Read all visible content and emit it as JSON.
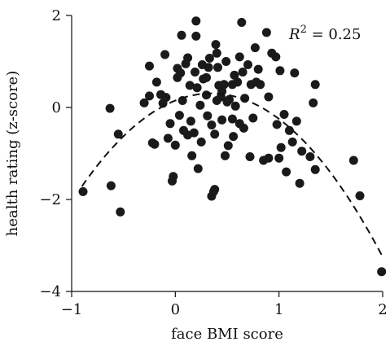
{
  "chart_data": {
    "type": "scatter",
    "xlabel": "face BMI score",
    "ylabel": "health rating (z-score)",
    "xlim": [
      -1,
      2
    ],
    "ylim": [
      -4,
      2
    ],
    "xticks": [
      -1,
      0,
      1,
      2
    ],
    "xtick_labels": [
      "−1",
      "0",
      "1",
      "2"
    ],
    "yticks": [
      -4,
      -2,
      0,
      2
    ],
    "ytick_labels": [
      "−4",
      "−2",
      "0",
      "2"
    ],
    "grid": false,
    "annotation": {
      "label": "R",
      "exponent": "2",
      "equals": " = ",
      "value": "0.25"
    },
    "fit": {
      "type": "quadratic",
      "coefficients": [
        0.15,
        0.9,
        -1.3
      ],
      "x_range": [
        -0.9,
        2.0
      ]
    },
    "points": [
      [
        -0.89,
        -1.83
      ],
      [
        -0.63,
        -0.02
      ],
      [
        -0.62,
        -1.7
      ],
      [
        -0.55,
        -0.58
      ],
      [
        -0.53,
        -2.27
      ],
      [
        -0.3,
        0.1
      ],
      [
        -0.25,
        0.9
      ],
      [
        -0.25,
        0.25
      ],
      [
        -0.22,
        -0.77
      ],
      [
        -0.2,
        -0.8
      ],
      [
        -0.18,
        0.55
      ],
      [
        -0.14,
        0.28
      ],
      [
        -0.12,
        0.09
      ],
      [
        -0.1,
        1.15
      ],
      [
        -0.09,
        0.22
      ],
      [
        -0.07,
        -0.67
      ],
      [
        -0.05,
        -0.35
      ],
      [
        -0.03,
        -1.6
      ],
      [
        -0.02,
        -1.5
      ],
      [
        0.0,
        -0.82
      ],
      [
        0.02,
        0.85
      ],
      [
        0.02,
        0.65
      ],
      [
        0.04,
        -0.17
      ],
      [
        0.05,
        0.75
      ],
      [
        0.06,
        1.57
      ],
      [
        0.07,
        0.15
      ],
      [
        0.08,
        -0.5
      ],
      [
        0.1,
        0.95
      ],
      [
        0.12,
        -0.6
      ],
      [
        0.12,
        1.08
      ],
      [
        0.14,
        0.48
      ],
      [
        0.15,
        -0.3
      ],
      [
        0.16,
        -1.05
      ],
      [
        0.18,
        -0.55
      ],
      [
        0.19,
        0.77
      ],
      [
        0.2,
        1.88
      ],
      [
        0.2,
        1.55
      ],
      [
        0.21,
        0.43
      ],
      [
        0.22,
        -1.33
      ],
      [
        0.24,
        0.05
      ],
      [
        0.25,
        -0.75
      ],
      [
        0.26,
        0.93
      ],
      [
        0.27,
        0.62
      ],
      [
        0.3,
        0.27
      ],
      [
        0.3,
        0.65
      ],
      [
        0.31,
        -0.18
      ],
      [
        0.32,
        0.87
      ],
      [
        0.33,
        1.07
      ],
      [
        0.35,
        -0.38
      ],
      [
        0.35,
        -1.93
      ],
      [
        0.37,
        -1.83
      ],
      [
        0.38,
        -1.78
      ],
      [
        0.38,
        -0.58
      ],
      [
        0.39,
        1.37
      ],
      [
        0.4,
        1.18
      ],
      [
        0.4,
        0.15
      ],
      [
        0.41,
        0.87
      ],
      [
        0.42,
        0.48
      ],
      [
        0.44,
        0.23
      ],
      [
        0.45,
        -0.27
      ],
      [
        0.45,
        0.35
      ],
      [
        0.47,
        0.5
      ],
      [
        0.48,
        -1.05
      ],
      [
        0.49,
        1.0
      ],
      [
        0.5,
        0.12
      ],
      [
        0.51,
        -0.83
      ],
      [
        0.52,
        0.17
      ],
      [
        0.55,
        0.5
      ],
      [
        0.55,
        -0.25
      ],
      [
        0.56,
        -0.63
      ],
      [
        0.57,
        0.7
      ],
      [
        0.58,
        0.03
      ],
      [
        0.6,
        0.55
      ],
      [
        0.62,
        1.1
      ],
      [
        0.62,
        -0.35
      ],
      [
        0.64,
        1.85
      ],
      [
        0.65,
        0.77
      ],
      [
        0.66,
        -0.45
      ],
      [
        0.67,
        0.2
      ],
      [
        0.7,
        0.93
      ],
      [
        0.72,
        -1.07
      ],
      [
        0.73,
        0.5
      ],
      [
        0.75,
        -0.23
      ],
      [
        0.77,
        1.3
      ],
      [
        0.78,
        0.55
      ],
      [
        0.8,
        0.83
      ],
      [
        0.82,
        0.5
      ],
      [
        0.85,
        -1.15
      ],
      [
        0.88,
        1.63
      ],
      [
        0.9,
        0.23
      ],
      [
        0.9,
        -1.1
      ],
      [
        0.93,
        1.18
      ],
      [
        0.97,
        1.1
      ],
      [
        0.98,
        -0.37
      ],
      [
        1.0,
        -1.1
      ],
      [
        1.01,
        0.8
      ],
      [
        1.02,
        -0.87
      ],
      [
        1.05,
        -0.15
      ],
      [
        1.07,
        -1.4
      ],
      [
        1.1,
        -0.5
      ],
      [
        1.13,
        -0.75
      ],
      [
        1.15,
        0.75
      ],
      [
        1.17,
        -0.3
      ],
      [
        1.2,
        -1.65
      ],
      [
        1.22,
        -0.95
      ],
      [
        1.3,
        -1.07
      ],
      [
        1.33,
        0.1
      ],
      [
        1.35,
        -1.35
      ],
      [
        1.35,
        0.5
      ],
      [
        1.72,
        -1.15
      ],
      [
        1.78,
        -1.92
      ],
      [
        1.99,
        -3.57
      ]
    ]
  }
}
